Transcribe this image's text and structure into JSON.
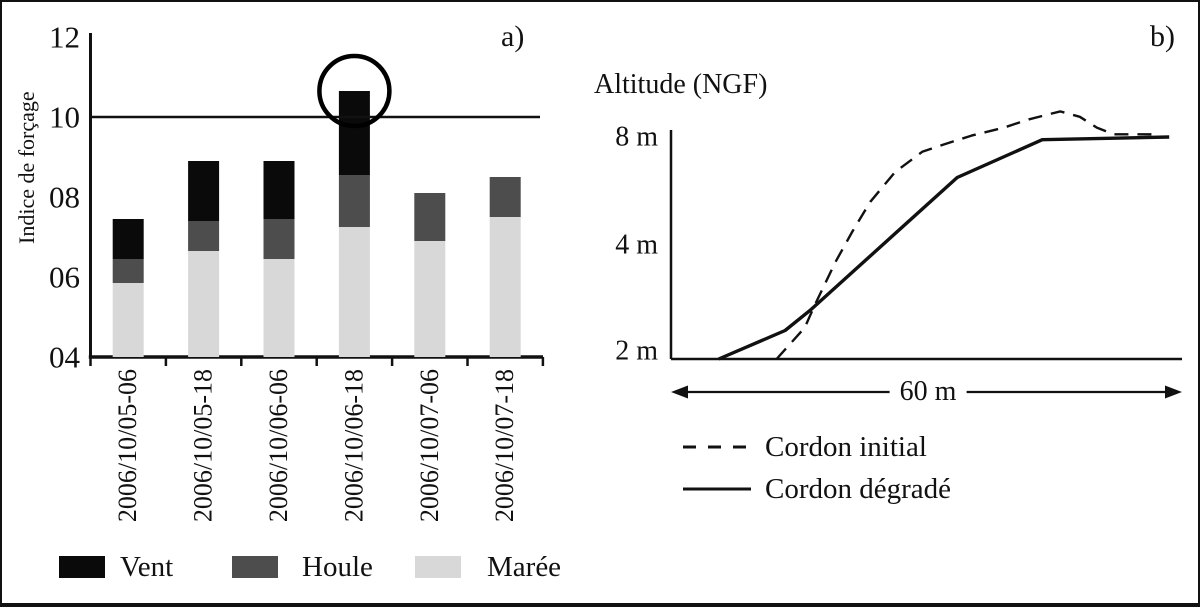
{
  "figure": {
    "panel_a_tag": "a)",
    "panel_b_tag": "b)"
  },
  "chart_data": [
    {
      "type": "bar",
      "stacked": true,
      "panel": "a",
      "title": "",
      "xlabel": "",
      "ylabel": "Indice de forçage",
      "ylim": [
        4,
        12
      ],
      "yticks": [
        {
          "label": "12",
          "value": 12
        },
        {
          "label": "10",
          "value": 10
        },
        {
          "label": "08",
          "value": 8
        },
        {
          "label": "06",
          "value": 6
        },
        {
          "label": "04",
          "value": 4
        }
      ],
      "threshold_line": {
        "value": 10
      },
      "highlight_circle": {
        "category": "2006/10/06-18",
        "top_value": 10.65
      },
      "categories": [
        "2006/10/05-06",
        "2006/10/05-18",
        "2006/10/06-06",
        "2006/10/06-18",
        "2006/10/07-06",
        "2006/10/07-18"
      ],
      "series": [
        {
          "name": "Marée",
          "color": "#d8d8d8",
          "stack_top_values": [
            5.85,
            6.65,
            6.45,
            7.25,
            6.9,
            7.5
          ]
        },
        {
          "name": "Houle",
          "color": "#4d4d4d",
          "stack_top_values": [
            6.45,
            7.4,
            7.45,
            8.55,
            8.1,
            8.5
          ]
        },
        {
          "name": "Vent",
          "color": "#0a0a0a",
          "stack_top_values": [
            7.45,
            8.9,
            8.9,
            10.65,
            8.1,
            8.5
          ]
        }
      ],
      "legend": [
        {
          "label": "Vent",
          "color": "#0a0a0a"
        },
        {
          "label": "Houle",
          "color": "#4d4d4d"
        },
        {
          "label": "Marée",
          "color": "#d8d8d8"
        }
      ],
      "legend_position": "bottom"
    },
    {
      "type": "line",
      "panel": "b",
      "title": "Altitude (NGF)",
      "x_range_m": [
        0,
        60
      ],
      "x_span_label": "60 m",
      "yticks": [
        {
          "label": "8 m",
          "value": 8
        },
        {
          "label": "4 m",
          "value": 4
        },
        {
          "label": "2 m",
          "value": 2
        }
      ],
      "y_axis_note": "schematic axis, non-linear tick spacing as drawn",
      "series": [
        {
          "name": "Cordon initial",
          "style": "dashed",
          "points_x_m_alt_m": [
            [
              12.4,
              2.0
            ],
            [
              15.7,
              2.55
            ],
            [
              16.9,
              2.95
            ],
            [
              19.3,
              3.7
            ],
            [
              21.3,
              4.5
            ],
            [
              23.4,
              5.6
            ],
            [
              26.3,
              6.7
            ],
            [
              29.5,
              7.45
            ],
            [
              31.8,
              7.7
            ],
            [
              35.3,
              8.05
            ],
            [
              39.1,
              8.35
            ],
            [
              42.0,
              8.65
            ],
            [
              45.7,
              8.95
            ],
            [
              48.0,
              8.75
            ],
            [
              50.0,
              8.35
            ],
            [
              52.0,
              8.1
            ],
            [
              56.5,
              8.1
            ]
          ]
        },
        {
          "name": "Cordon dégradé",
          "style": "solid",
          "points_x_m_alt_m": [
            [
              5.6,
              2.0
            ],
            [
              13.4,
              2.5
            ],
            [
              16.3,
              2.85
            ],
            [
              33.6,
              6.5
            ],
            [
              43.6,
              7.9
            ],
            [
              58.5,
              8.0
            ]
          ]
        }
      ],
      "legend": [
        {
          "label": "Cordon initial",
          "style": "dashed"
        },
        {
          "label": "Cordon dégradé",
          "style": "solid"
        }
      ],
      "legend_position": "bottom-left"
    }
  ]
}
